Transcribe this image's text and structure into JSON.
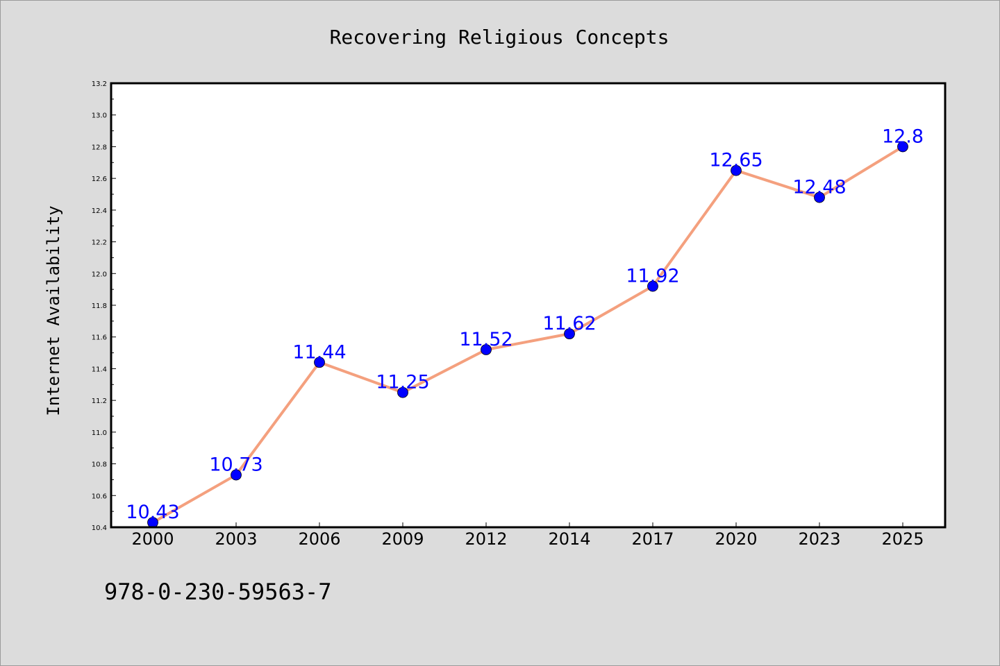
{
  "chart_data": {
    "type": "line",
    "title": "Recovering Religious Concepts",
    "xlabel": "",
    "ylabel": "Internet Availability",
    "categories": [
      "2000",
      "2003",
      "2006",
      "2009",
      "2012",
      "2014",
      "2017",
      "2020",
      "2023",
      "2025"
    ],
    "series": [
      {
        "values": [
          10.43,
          10.73,
          11.44,
          11.25,
          11.52,
          11.62,
          11.92,
          12.65,
          12.48,
          12.8
        ],
        "labels": [
          "10.43",
          "10.73",
          "11.44",
          "11.25",
          "11.52",
          "11.62",
          "11.92",
          "12.65",
          "12.48",
          "12.8"
        ]
      }
    ],
    "ylim": [
      10.4,
      13.2
    ],
    "yticks": [
      "10.4",
      "10.6",
      "10.8",
      "11.0",
      "11.2",
      "11.4",
      "11.6",
      "11.8",
      "12.0",
      "12.2",
      "12.4",
      "12.6",
      "12.8",
      "13.0",
      "13.2"
    ],
    "grid": false,
    "legend": "none"
  },
  "footer": {
    "isbn": "978-0-230-59563-7"
  },
  "colors": {
    "background": "#dcdcdc",
    "plot_background": "#ffffff",
    "line": "#f4a07e",
    "marker": "#0000ff",
    "data_label": "#0000ff"
  }
}
